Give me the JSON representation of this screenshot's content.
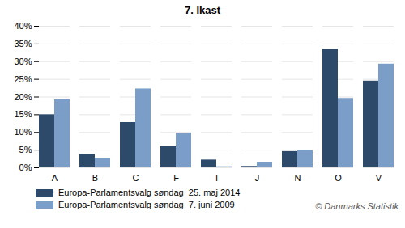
{
  "chart_data": {
    "type": "bar",
    "title": "7. Ikast",
    "categories": [
      "A",
      "B",
      "C",
      "F",
      "I",
      "J",
      "N",
      "O",
      "V"
    ],
    "series": [
      {
        "name": "Europa-Parlamentsvalg søndag  25. maj 2014",
        "color": "#2E4A6B",
        "values": [
          15.0,
          3.8,
          12.8,
          6.0,
          2.2,
          0.4,
          4.6,
          33.5,
          24.5
        ]
      },
      {
        "name": "Europa-Parlamentsvalg søndag  7. juni 2009",
        "color": "#7B9EC8",
        "values": [
          19.2,
          2.7,
          22.3,
          9.8,
          0.3,
          1.6,
          4.8,
          19.6,
          29.3
        ]
      }
    ],
    "ylim": [
      0,
      40
    ],
    "yticks": [
      {
        "value": 0,
        "label": "0%"
      },
      {
        "value": 5,
        "label": "5%"
      },
      {
        "value": 10,
        "label": "10%"
      },
      {
        "value": 15,
        "label": "15%"
      },
      {
        "value": 20,
        "label": "20%"
      },
      {
        "value": 25,
        "label": "25%"
      },
      {
        "value": 30,
        "label": "30%"
      },
      {
        "value": 35,
        "label": "35%"
      },
      {
        "value": 40,
        "label": "40%"
      }
    ],
    "grid": true,
    "legend": "bottom",
    "annotations": [
      "© Danmarks Statistik"
    ]
  }
}
